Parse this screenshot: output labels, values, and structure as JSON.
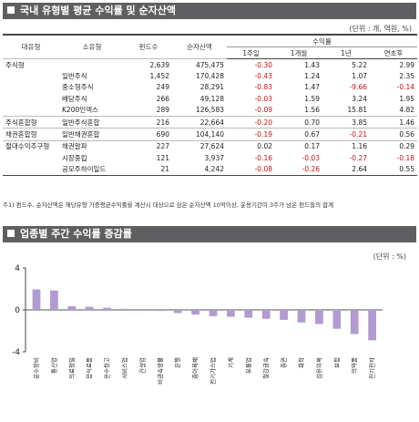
{
  "section1": {
    "title": "국내 유형별 평균 수익률 및 순자산액",
    "unit": "(단위 : 개, 억원, %)"
  },
  "table": {
    "headers": {
      "type": "대유형",
      "subtype": "소유형",
      "fund_count": "펀드수",
      "net_assets": "순자산액",
      "returns_group": "수익률",
      "w1": "1주일",
      "m1": "1개월",
      "y1": "1년",
      "ytd": "연초후"
    },
    "rows": [
      {
        "type": "주식형",
        "subtype": "",
        "fund_count": "2,639",
        "net_assets": "475,475",
        "w1": "-0.30",
        "m1": "1.43",
        "y1": "5.22",
        "ytd": "2.99"
      },
      {
        "type": "",
        "subtype": "일반주식",
        "fund_count": "1,452",
        "net_assets": "170,428",
        "w1": "-0.43",
        "m1": "1.24",
        "y1": "1.07",
        "ytd": "2.35"
      },
      {
        "type": "",
        "subtype": "중소형주식",
        "fund_count": "249",
        "net_assets": "28,291",
        "w1": "-0.83",
        "m1": "1.47",
        "y1": "-9.66",
        "ytd": "-0.14"
      },
      {
        "type": "",
        "subtype": "배당주식",
        "fund_count": "266",
        "net_assets": "49,128",
        "w1": "-0.03",
        "m1": "1.59",
        "y1": "3.24",
        "ytd": "1.95"
      },
      {
        "type": "",
        "subtype": "K200인덱스",
        "fund_count": "289",
        "net_assets": "126,583",
        "w1": "-0.09",
        "m1": "1.56",
        "y1": "15.81",
        "ytd": "4.82"
      },
      {
        "type": "주식혼합형",
        "subtype": "일반주식혼합",
        "fund_count": "216",
        "net_assets": "22,664",
        "w1": "-0.20",
        "m1": "0.70",
        "y1": "3.85",
        "ytd": "1.46"
      },
      {
        "type": "채권혼합형",
        "subtype": "일반채권혼합",
        "fund_count": "690",
        "net_assets": "104,140",
        "w1": "-0.19",
        "m1": "0.67",
        "y1": "-0.21",
        "ytd": "0.56"
      },
      {
        "type": "절대수익추구형",
        "subtype": "채권알파",
        "fund_count": "227",
        "net_assets": "27,624",
        "w1": "0.02",
        "m1": "0.17",
        "y1": "1.16",
        "ytd": "0.29"
      },
      {
        "type": "",
        "subtype": "시장중립",
        "fund_count": "121",
        "net_assets": "3,937",
        "w1": "-0.16",
        "m1": "-0.03",
        "y1": "-0.27",
        "ytd": "-0.18"
      },
      {
        "type": "",
        "subtype": "공모주하이일드",
        "fund_count": "21",
        "net_assets": "4,242",
        "w1": "-0.08",
        "m1": "-0.26",
        "y1": "2.64",
        "ytd": "0.55"
      }
    ],
    "note": "주1) 펀드수, 순자산액은 해당유형 가중평균수익률을 계산시 대상으로 삼은 순자산액 10억이상, 운용기간이 3주가 넘은 펀드들의 합계"
  },
  "section2": {
    "title": "업종별 주간 수익률 증감률",
    "unit": "(단위 : %)"
  },
  "chart_data": {
    "type": "bar",
    "title": "업종별 주간 수익률 증감률",
    "xlabel": "",
    "ylabel": "",
    "ylim": [
      -4,
      4
    ],
    "yticks": [
      -4,
      0,
      4
    ],
    "grid": false,
    "bar_color": "#b19bcf",
    "categories": [
      "운수장비",
      "통신업",
      "의료정밀",
      "음식료품",
      "운수창고",
      "서비스업",
      "건설업",
      "비금속광물",
      "은행",
      "종이목재",
      "전기가스업",
      "기계",
      "유통업",
      "철강금속",
      "증권",
      "화학",
      "섬유의복",
      "보험",
      "의약품",
      "전기전자"
    ],
    "values": [
      1.95,
      1.85,
      0.35,
      0.3,
      0.2,
      0.1,
      -0.05,
      -0.1,
      -0.3,
      -0.45,
      -0.6,
      -0.65,
      -0.75,
      -0.85,
      -0.95,
      -1.2,
      -1.35,
      -1.8,
      -2.3,
      -2.9
    ]
  }
}
